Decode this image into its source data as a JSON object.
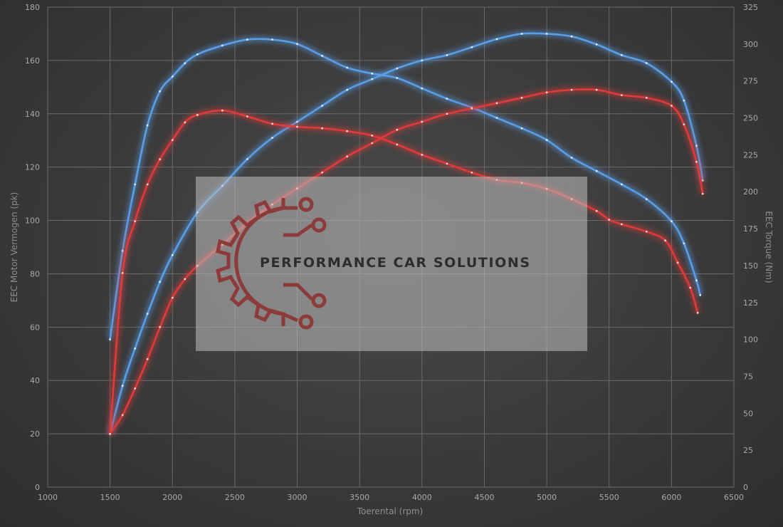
{
  "chart_data": {
    "type": "line",
    "title": "",
    "xlabel": "Toerental (rpm)",
    "ylabel": "EEC Motor Vermogen (pk)",
    "y2label": "EEC Torque (Nm)",
    "xlim": [
      1000,
      6500
    ],
    "ylim": [
      0,
      180
    ],
    "y2lim": [
      0,
      325
    ],
    "x_ticks": [
      1000,
      1500,
      2000,
      2500,
      3000,
      3500,
      4000,
      4500,
      5000,
      5500,
      6000,
      6500
    ],
    "y_ticks": [
      0,
      20,
      40,
      60,
      80,
      100,
      120,
      140,
      160,
      180
    ],
    "y2_ticks": [
      0,
      25,
      50,
      75,
      100,
      125,
      150,
      175,
      200,
      225,
      250,
      275,
      300,
      325
    ],
    "grid": true,
    "legend": "none",
    "watermark": "PERFORMANCE CAR SOLUTIONS",
    "colors": {
      "tuned": "#5a9ee8",
      "stock": "#e03a3a"
    },
    "series": [
      {
        "axis": "left",
        "color": "#5a9ee8",
        "x": [
          1500,
          1600,
          1700,
          1800,
          1900,
          2000,
          2200,
          2400,
          2600,
          2800,
          3000,
          3200,
          3400,
          3600,
          3800,
          4000,
          4200,
          4400,
          4600,
          4800,
          5000,
          5200,
          5400,
          5600,
          5800,
          6000,
          6100,
          6200,
          6250
        ],
        "values": [
          20,
          38,
          52,
          65,
          77,
          87,
          103,
          113,
          123,
          131,
          137,
          143,
          149,
          153,
          157,
          160,
          162,
          165,
          168,
          170,
          170,
          169,
          166,
          162,
          159,
          152,
          145,
          128,
          115
        ]
      },
      {
        "axis": "right",
        "color": "#5a9ee8",
        "x": [
          1500,
          1600,
          1700,
          1800,
          1900,
          2000,
          2100,
          2200,
          2400,
          2600,
          2800,
          3000,
          3200,
          3400,
          3600,
          3800,
          4000,
          4200,
          4400,
          4600,
          4800,
          5000,
          5200,
          5400,
          5600,
          5800,
          6000,
          6100,
          6200,
          6230
        ],
        "values": [
          100,
          160,
          205,
          245,
          268,
          278,
          287,
          293,
          299,
          303,
          303,
          300,
          292,
          284,
          280,
          277,
          270,
          263,
          257,
          250,
          243,
          235,
          223,
          214,
          205,
          195,
          180,
          165,
          140,
          130
        ]
      },
      {
        "axis": "left",
        "color": "#e03a3a",
        "x": [
          1500,
          1600,
          1700,
          1800,
          1900,
          2000,
          2100,
          2200,
          2400,
          2600,
          2800,
          3000,
          3200,
          3400,
          3600,
          3800,
          4000,
          4200,
          4400,
          4600,
          4800,
          5000,
          5200,
          5400,
          5600,
          5800,
          6000,
          6100,
          6200,
          6250
        ],
        "values": [
          20,
          27,
          37,
          48,
          60,
          71,
          78,
          83,
          91,
          99,
          106,
          112,
          118,
          124,
          129,
          134,
          137,
          140,
          142,
          144,
          146,
          148,
          149,
          149,
          147,
          146,
          143,
          136,
          122,
          110
        ]
      },
      {
        "axis": "right",
        "color": "#e03a3a",
        "x": [
          1500,
          1600,
          1700,
          1800,
          1900,
          2000,
          2100,
          2200,
          2400,
          2600,
          2800,
          3000,
          3200,
          3400,
          3600,
          3800,
          4000,
          4200,
          4400,
          4600,
          4800,
          5000,
          5200,
          5400,
          5500,
          5600,
          5800,
          5950,
          6050,
          6150,
          6210
        ],
        "values": [
          36,
          145,
          180,
          205,
          222,
          235,
          247,
          252,
          255,
          251,
          246,
          244,
          243,
          241,
          238,
          232,
          225,
          219,
          213,
          208,
          206,
          202,
          195,
          187,
          181,
          178,
          173,
          167,
          152,
          135,
          118
        ]
      }
    ]
  }
}
